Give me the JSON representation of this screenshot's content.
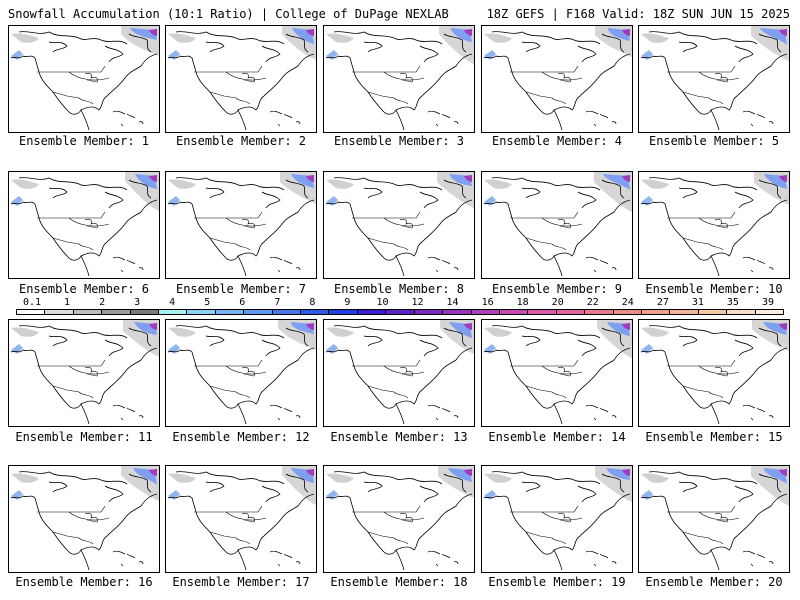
{
  "header": {
    "title_left": "Snowfall Accumulation (10:1 Ratio) | College of DuPage NEXLAB",
    "title_right": "18Z GEFS | F168 Valid: 18Z SUN JUN 15 2025"
  },
  "panels": [
    {
      "caption": "Ensemble Member: 1"
    },
    {
      "caption": "Ensemble Member: 2"
    },
    {
      "caption": "Ensemble Member: 3"
    },
    {
      "caption": "Ensemble Member: 4"
    },
    {
      "caption": "Ensemble Member: 5"
    },
    {
      "caption": "Ensemble Member: 6"
    },
    {
      "caption": "Ensemble Member: 7"
    },
    {
      "caption": "Ensemble Member: 8"
    },
    {
      "caption": "Ensemble Member: 9"
    },
    {
      "caption": "Ensemble Member: 10"
    },
    {
      "caption": "Ensemble Member: 11"
    },
    {
      "caption": "Ensemble Member: 12"
    },
    {
      "caption": "Ensemble Member: 13"
    },
    {
      "caption": "Ensemble Member: 14"
    },
    {
      "caption": "Ensemble Member: 15"
    },
    {
      "caption": "Ensemble Member: 16"
    },
    {
      "caption": "Ensemble Member: 17"
    },
    {
      "caption": "Ensemble Member: 18"
    },
    {
      "caption": "Ensemble Member: 19"
    },
    {
      "caption": "Ensemble Member: 20"
    }
  ],
  "colorbar": {
    "labels": [
      "0.1",
      "1",
      "2",
      "3",
      "4",
      "5",
      "6",
      "7",
      "8",
      "9",
      "10",
      "12",
      "14",
      "16",
      "18",
      "20",
      "22",
      "24",
      "27",
      "31",
      "35",
      "39"
    ],
    "colors": [
      "#ffffff",
      "#dcdcdc",
      "#bdbdbd",
      "#9a9a9a",
      "#7a7a7a",
      "#a8f0f0",
      "#8fd0f5",
      "#79b4f2",
      "#5f96ee",
      "#4678ea",
      "#2f5ae6",
      "#1f3fe0",
      "#3a1fd0",
      "#5a22c4",
      "#7a2bbe",
      "#9535b8",
      "#b03fb6",
      "#c84bb2",
      "#d85aa8",
      "#e0669c",
      "#e87890",
      "#ec8c86",
      "#f0a08a",
      "#f3b496",
      "#f6c8aa",
      "#f9dcc4",
      "#fcece0"
    ]
  }
}
